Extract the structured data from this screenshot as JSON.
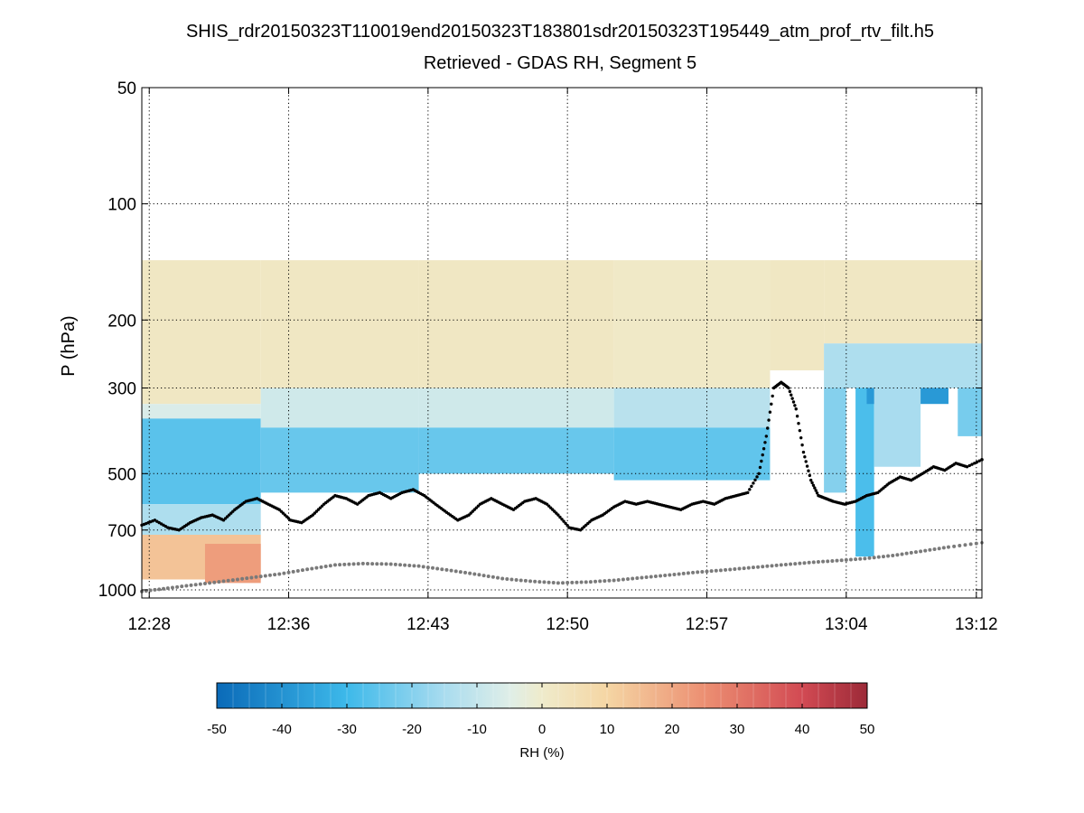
{
  "chart_data": {
    "type": "heatmap",
    "title": "SHIS_rdr20150323T110019end20150323T183801sdr20150323T195449_atm_prof_rtv_filt.h5",
    "subtitle": "Retrieved - GDAS RH, Segment 5",
    "ylabel": "P (hPa)",
    "xlabel": "",
    "y_scale": "log",
    "y_reversed": true,
    "ylim": [
      50,
      1050
    ],
    "y_ticks": [
      50,
      100,
      200,
      300,
      500,
      700,
      1000
    ],
    "y_tick_labels": [
      "50",
      "100",
      "200",
      "300",
      "500",
      "700",
      "1000"
    ],
    "x_range_minutes": [
      27.6,
      72.8
    ],
    "x_ticks_minutes": [
      28.0,
      35.5,
      43.0,
      50.5,
      58.0,
      65.5,
      72.5
    ],
    "x_tick_labels": [
      "12:28",
      "12:36",
      "12:43",
      "12:50",
      "12:57",
      "13:04",
      "13:12"
    ],
    "grid": true,
    "colorbar": {
      "label": "RH (%)",
      "min": -50,
      "max": 50,
      "ticks": [
        -50,
        -40,
        -30,
        -20,
        -10,
        0,
        10,
        20,
        30,
        40,
        50
      ],
      "tick_labels": [
        "-50",
        "-40",
        "-30",
        "-20",
        "-10",
        "0",
        "10",
        "20",
        "30",
        "40",
        "50"
      ],
      "stops": [
        {
          "v": -50,
          "color": "#0a6ab8"
        },
        {
          "v": -30,
          "color": "#3db9ea"
        },
        {
          "v": -15,
          "color": "#a9dcef"
        },
        {
          "v": -5,
          "color": "#dfeee8"
        },
        {
          "v": 0,
          "color": "#efebcb"
        },
        {
          "v": 10,
          "color": "#f5d6a4"
        },
        {
          "v": 25,
          "color": "#ec8f72"
        },
        {
          "v": 40,
          "color": "#d24a53"
        },
        {
          "v": 50,
          "color": "#9c2a38"
        }
      ]
    },
    "field_columns": [
      {
        "t0": 27.6,
        "t1": 34.0,
        "p_top": 140,
        "p_bottom": 940,
        "segments": [
          {
            "p0": 140,
            "p1": 330,
            "rh": 2
          },
          {
            "p0": 330,
            "p1": 360,
            "rh": -6
          },
          {
            "p0": 360,
            "p1": 600,
            "rh": -26
          },
          {
            "p0": 600,
            "p1": 720,
            "rh": -14
          },
          {
            "p0": 720,
            "p1": 940,
            "rh": 14
          }
        ]
      },
      {
        "t0": 31.0,
        "t1": 34.0,
        "p_top": 760,
        "p_bottom": 960,
        "segments": [
          {
            "p0": 760,
            "p1": 960,
            "rh": 22
          }
        ]
      },
      {
        "t0": 34.0,
        "t1": 42.5,
        "p_top": 140,
        "p_bottom": 560,
        "segments": [
          {
            "p0": 140,
            "p1": 300,
            "rh": 2
          },
          {
            "p0": 300,
            "p1": 380,
            "rh": -8
          },
          {
            "p0": 380,
            "p1": 560,
            "rh": -24
          }
        ]
      },
      {
        "t0": 42.5,
        "t1": 53.0,
        "p_top": 140,
        "p_bottom": 500,
        "segments": [
          {
            "p0": 140,
            "p1": 300,
            "rh": 2
          },
          {
            "p0": 300,
            "p1": 380,
            "rh": -8
          },
          {
            "p0": 380,
            "p1": 500,
            "rh": -24
          }
        ]
      },
      {
        "t0": 53.0,
        "t1": 61.4,
        "p_top": 140,
        "p_bottom": 520,
        "segments": [
          {
            "p0": 140,
            "p1": 300,
            "rh": 1
          },
          {
            "p0": 300,
            "p1": 380,
            "rh": -12
          },
          {
            "p0": 380,
            "p1": 520,
            "rh": -25
          }
        ]
      },
      {
        "t0": 61.4,
        "t1": 64.3,
        "p_top": 140,
        "p_bottom": 270,
        "segments": [
          {
            "p0": 140,
            "p1": 270,
            "rh": 2
          }
        ]
      },
      {
        "t0": 64.3,
        "t1": 72.8,
        "p_top": 140,
        "p_bottom": 300,
        "segments": [
          {
            "p0": 140,
            "p1": 230,
            "rh": 2
          },
          {
            "p0": 230,
            "p1": 300,
            "rh": -14
          }
        ]
      },
      {
        "t0": 64.3,
        "t1": 65.5,
        "p_top": 300,
        "p_bottom": 560,
        "segments": [
          {
            "p0": 300,
            "p1": 560,
            "rh": -20
          }
        ]
      },
      {
        "t0": 66.0,
        "t1": 67.0,
        "p_top": 300,
        "p_bottom": 820,
        "segments": [
          {
            "p0": 300,
            "p1": 820,
            "rh": -28
          }
        ]
      },
      {
        "t0": 66.6,
        "t1": 71.0,
        "p_top": 300,
        "p_bottom": 330,
        "segments": [
          {
            "p0": 300,
            "p1": 330,
            "rh": -38
          }
        ]
      },
      {
        "t0": 67.0,
        "t1": 69.5,
        "p_top": 300,
        "p_bottom": 480,
        "segments": [
          {
            "p0": 300,
            "p1": 480,
            "rh": -15
          }
        ]
      },
      {
        "t0": 71.5,
        "t1": 72.8,
        "p_top": 300,
        "p_bottom": 400,
        "segments": [
          {
            "p0": 300,
            "p1": 400,
            "rh": -22
          }
        ]
      }
    ],
    "series": [
      {
        "name": "black markers",
        "color": "#000000",
        "t_minutes": [
          27.6,
          28.3,
          29.0,
          29.6,
          30.2,
          30.8,
          31.4,
          32.0,
          32.6,
          33.2,
          33.8,
          34.4,
          35.0,
          35.6,
          36.2,
          36.8,
          37.4,
          38.0,
          38.6,
          39.2,
          39.8,
          40.4,
          41.0,
          41.6,
          42.2,
          42.8,
          43.4,
          44.0,
          44.6,
          45.2,
          45.8,
          46.4,
          47.0,
          47.6,
          48.2,
          48.8,
          49.4,
          50.0,
          50.6,
          51.2,
          51.8,
          52.4,
          53.0,
          53.6,
          54.2,
          54.8,
          55.4,
          56.0,
          56.6,
          57.2,
          57.8,
          58.4,
          59.0,
          59.6,
          60.2,
          60.8,
          61.2,
          61.6,
          62.0,
          62.4,
          62.8,
          63.2,
          63.6,
          64.0,
          64.4,
          64.8,
          65.4,
          66.0,
          66.6,
          67.2,
          67.8,
          68.4,
          69.0,
          69.6,
          70.2,
          70.8,
          71.4,
          72.0,
          72.8
        ],
        "p_hpa": [
          680,
          660,
          690,
          700,
          670,
          650,
          640,
          660,
          620,
          590,
          580,
          600,
          620,
          660,
          670,
          640,
          600,
          570,
          580,
          600,
          570,
          560,
          580,
          560,
          550,
          570,
          600,
          630,
          660,
          640,
          600,
          580,
          600,
          620,
          590,
          580,
          600,
          640,
          690,
          700,
          660,
          640,
          610,
          590,
          600,
          590,
          600,
          610,
          620,
          600,
          590,
          600,
          580,
          570,
          560,
          500,
          400,
          300,
          290,
          300,
          340,
          440,
          520,
          570,
          580,
          590,
          600,
          590,
          570,
          560,
          530,
          510,
          520,
          500,
          480,
          490,
          470,
          480,
          460
        ]
      },
      {
        "name": "gray markers",
        "color": "#7a7a7a",
        "t_minutes": [
          27.6,
          29.0,
          30.5,
          32.0,
          33.5,
          35.0,
          36.5,
          38.0,
          39.5,
          41.0,
          42.5,
          44.0,
          45.5,
          47.0,
          48.5,
          50.0,
          51.5,
          53.0,
          54.5,
          56.0,
          57.5,
          59.0,
          60.5,
          62.0,
          63.5,
          65.0,
          66.5,
          68.0,
          69.5,
          71.0,
          72.8
        ],
        "p_hpa": [
          1010,
          990,
          970,
          950,
          930,
          910,
          885,
          862,
          855,
          858,
          868,
          888,
          910,
          935,
          950,
          960,
          955,
          945,
          930,
          915,
          900,
          888,
          875,
          862,
          850,
          840,
          830,
          815,
          795,
          775,
          755
        ]
      }
    ]
  }
}
